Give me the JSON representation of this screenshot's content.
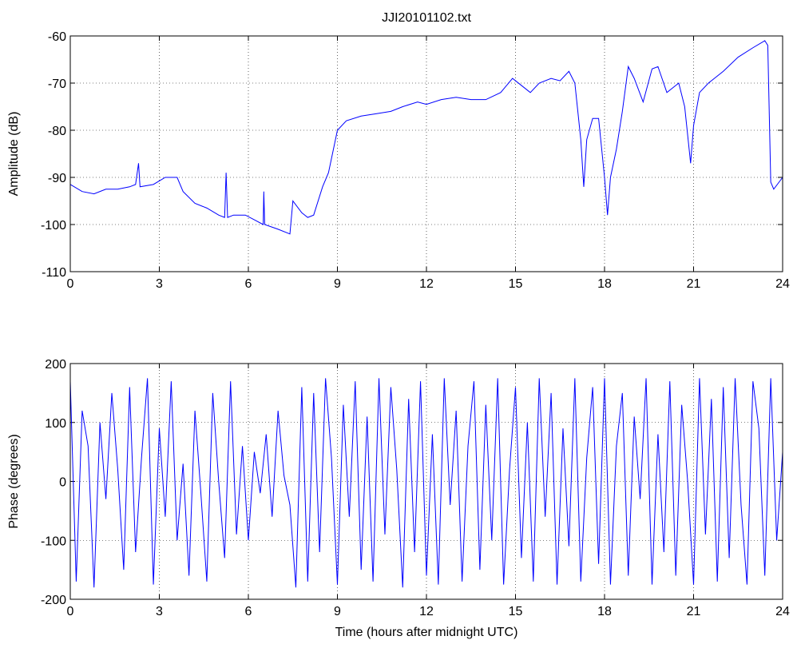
{
  "chart_data": [
    {
      "type": "line",
      "title": "JJI20101102.txt",
      "ylabel": "Amplitude (dB)",
      "color": "#0000ff",
      "grid": true,
      "xlim": [
        0,
        24
      ],
      "xticks": [
        0,
        3,
        6,
        9,
        12,
        15,
        18,
        21,
        24
      ],
      "ylim": [
        -110,
        -60
      ],
      "yticks": [
        -110,
        -100,
        -90,
        -80,
        -70,
        -60
      ],
      "x": [
        0,
        0.4,
        0.8,
        1.2,
        1.6,
        2.0,
        2.2,
        2.3,
        2.35,
        2.8,
        3.2,
        3.6,
        3.8,
        4.2,
        4.6,
        5.0,
        5.2,
        5.25,
        5.3,
        5.5,
        5.9,
        6.2,
        6.5,
        6.52,
        6.55,
        7.0,
        7.4,
        7.5,
        7.8,
        8.0,
        8.2,
        8.5,
        8.7,
        9.0,
        9.3,
        9.8,
        10.3,
        10.8,
        11.2,
        11.7,
        12.0,
        12.5,
        13.0,
        13.5,
        14.0,
        14.5,
        14.9,
        15.2,
        15.5,
        15.8,
        16.2,
        16.5,
        16.8,
        17.0,
        17.2,
        17.3,
        17.4,
        17.6,
        17.8,
        18.0,
        18.1,
        18.2,
        18.4,
        18.6,
        18.8,
        19.0,
        19.3,
        19.6,
        19.8,
        20.1,
        20.3,
        20.5,
        20.7,
        20.9,
        21.0,
        21.2,
        21.5,
        22.0,
        22.5,
        23.0,
        23.4,
        23.5,
        23.6,
        23.7,
        24.0
      ],
      "values": [
        -91.5,
        -93,
        -93.5,
        -92.5,
        -92.5,
        -92,
        -91.5,
        -87,
        -92,
        -91.5,
        -90,
        -90,
        -93,
        -95.5,
        -96.5,
        -98,
        -98.5,
        -89,
        -98.5,
        -98,
        -98,
        -99,
        -100,
        -93,
        -100,
        -101,
        -102,
        -95,
        -97.5,
        -98.5,
        -98,
        -92,
        -89,
        -80,
        -78,
        -77,
        -76.5,
        -76,
        -75,
        -74,
        -74.5,
        -73.5,
        -73,
        -73.5,
        -73.5,
        -72,
        -69,
        -70.5,
        -72,
        -70,
        -69,
        -69.5,
        -67.5,
        -70,
        -82,
        -92,
        -82,
        -77.5,
        -77.5,
        -90,
        -98,
        -90,
        -84,
        -76,
        -66.5,
        -69,
        -74,
        -67,
        -66.5,
        -72,
        -71,
        -70,
        -75,
        -87,
        -79,
        -72,
        -70,
        -67.5,
        -64.5,
        -62.5,
        -61,
        -62,
        -91,
        -92.5,
        -90
      ]
    },
    {
      "type": "line",
      "xlabel": "Time (hours after midnight UTC)",
      "ylabel": "Phase (degrees)",
      "color": "#0000ff",
      "grid": true,
      "xlim": [
        0,
        24
      ],
      "xticks": [
        0,
        3,
        6,
        9,
        12,
        15,
        18,
        21,
        24
      ],
      "ylim": [
        -200,
        200
      ],
      "yticks": [
        -200,
        -100,
        0,
        100,
        200
      ],
      "x": [
        0,
        0.2,
        0.4,
        0.6,
        0.8,
        1,
        1.2,
        1.4,
        1.6,
        1.8,
        2,
        2.2,
        2.4,
        2.6,
        2.8,
        3,
        3.2,
        3.4,
        3.6,
        3.8,
        4,
        4.2,
        4.4,
        4.6,
        4.8,
        5,
        5.2,
        5.4,
        5.6,
        5.8,
        6,
        6.2,
        6.4,
        6.6,
        6.8,
        7,
        7.2,
        7.4,
        7.6,
        7.8,
        8,
        8.2,
        8.4,
        8.6,
        8.8,
        9,
        9.2,
        9.4,
        9.6,
        9.8,
        10,
        10.2,
        10.4,
        10.6,
        10.8,
        11,
        11.2,
        11.4,
        11.6,
        11.8,
        12,
        12.2,
        12.4,
        12.6,
        12.8,
        13,
        13.2,
        13.4,
        13.6,
        13.8,
        14,
        14.2,
        14.4,
        14.6,
        14.8,
        15,
        15.2,
        15.4,
        15.6,
        15.8,
        16,
        16.2,
        16.4,
        16.6,
        16.8,
        17,
        17.2,
        17.4,
        17.6,
        17.8,
        18,
        18.2,
        18.4,
        18.6,
        18.8,
        19,
        19.2,
        19.4,
        19.6,
        19.8,
        20,
        20.2,
        20.4,
        20.6,
        20.8,
        21,
        21.2,
        21.4,
        21.6,
        21.8,
        22,
        22.2,
        22.4,
        22.6,
        22.8,
        23,
        23.2,
        23.4,
        23.6,
        23.8,
        24
      ],
      "values": [
        170,
        -170,
        120,
        60,
        -180,
        100,
        -30,
        150,
        20,
        -150,
        160,
        -120,
        40,
        175,
        -175,
        90,
        -60,
        170,
        -100,
        30,
        -160,
        120,
        -20,
        -170,
        150,
        0,
        -130,
        170,
        -90,
        60,
        -100,
        50,
        -20,
        80,
        -60,
        120,
        10,
        -40,
        -180,
        160,
        -170,
        150,
        -120,
        175,
        40,
        -175,
        130,
        -60,
        170,
        -150,
        110,
        -170,
        175,
        -90,
        160,
        20,
        -180,
        140,
        -120,
        170,
        -160,
        80,
        -175,
        175,
        -40,
        120,
        -170,
        60,
        170,
        -150,
        130,
        -100,
        175,
        -175,
        20,
        160,
        -130,
        100,
        -170,
        175,
        -60,
        150,
        -175,
        90,
        -110,
        175,
        -170,
        40,
        160,
        -140,
        175,
        -175,
        60,
        150,
        -160,
        110,
        -30,
        175,
        -175,
        80,
        -120,
        170,
        -160,
        130,
        0,
        -175,
        175,
        -90,
        140,
        -170,
        160,
        -130,
        175,
        -40,
        -175,
        170,
        90,
        -160,
        175,
        -100,
        50
      ]
    }
  ]
}
